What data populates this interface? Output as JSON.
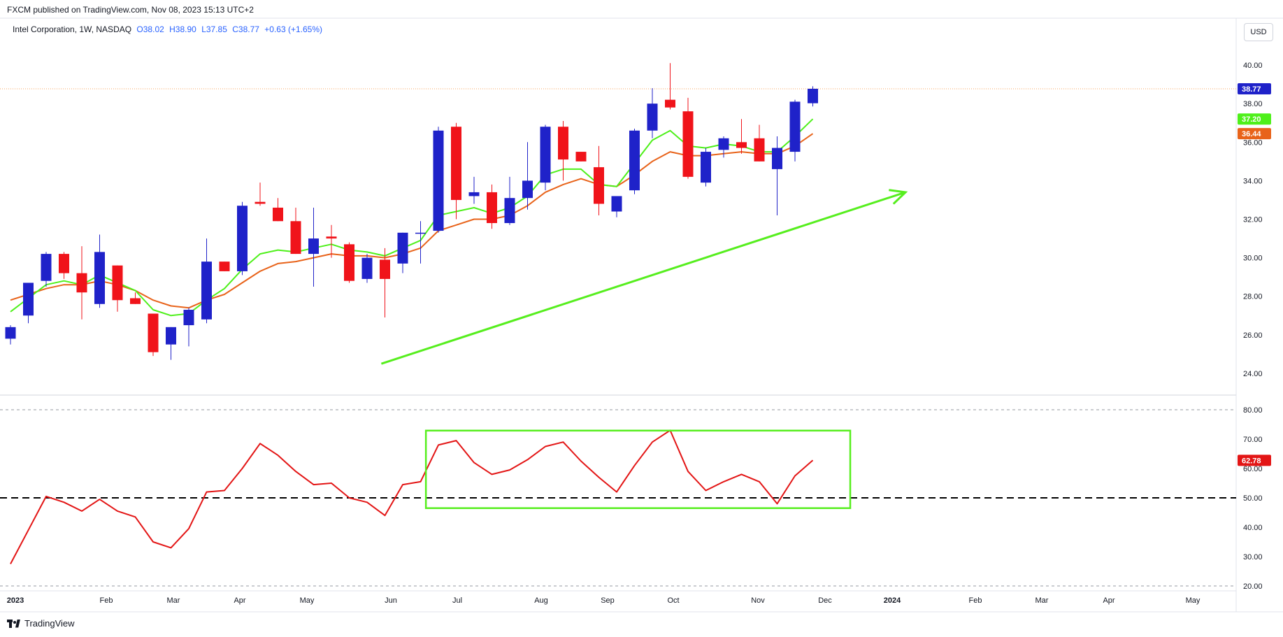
{
  "header": {
    "published": "FXCM published on TradingView.com, Nov 08, 2023 15:13 UTC+2"
  },
  "legend": {
    "symbol": "Intel Corporation, 1W, NASDAQ",
    "open": "O38.02",
    "high": "H38.90",
    "low": "L37.85",
    "close": "C38.77",
    "change": "+0.63 (+1.65%)"
  },
  "currency_button": "USD",
  "footer": {
    "brand": "TradingView"
  },
  "colors": {
    "up": "#1f22c9",
    "down": "#f0131a",
    "ema_fast": "#4ef01a",
    "ema_slow": "#e8631a",
    "rsi": "#e31515",
    "annotation": "#56ee1e"
  },
  "chart_data": [
    {
      "type": "candlestick",
      "title": "",
      "ylim": [
        23.2,
        41.2
      ],
      "y_ticks": [
        "24.00",
        "26.00",
        "28.00",
        "30.00",
        "32.00",
        "34.00",
        "36.00",
        "38.00",
        "40.00"
      ],
      "x_ticks": [
        "2023",
        "Feb",
        "Mar",
        "Apr",
        "May",
        "Jun",
        "Jul",
        "Aug",
        "Sep",
        "Oct",
        "Nov",
        "Dec",
        "2024",
        "Feb",
        "Mar",
        "Apr",
        "May"
      ],
      "price_labels": [
        {
          "text": "38.77",
          "value": 38.77,
          "color": "#1f22c9"
        },
        {
          "text": "37.20",
          "value": 37.2,
          "color": "#4ef01a"
        },
        {
          "text": "36.44",
          "value": 36.44,
          "color": "#e8631a"
        }
      ],
      "last_price": 38.77,
      "ohlc": [
        [
          25.8,
          26.5,
          25.5,
          26.4
        ],
        [
          27.0,
          28.7,
          26.6,
          28.7
        ],
        [
          28.8,
          30.3,
          28.5,
          30.2
        ],
        [
          30.2,
          30.3,
          28.9,
          29.2
        ],
        [
          29.2,
          30.6,
          26.8,
          28.2
        ],
        [
          27.6,
          31.2,
          27.4,
          30.3
        ],
        [
          29.6,
          29.6,
          27.2,
          27.8
        ],
        [
          27.9,
          28.2,
          27.6,
          27.6
        ],
        [
          27.1,
          27.1,
          24.9,
          25.1
        ],
        [
          25.5,
          26.4,
          24.7,
          26.4
        ],
        [
          26.5,
          27.4,
          25.4,
          27.3
        ],
        [
          26.8,
          31.0,
          26.6,
          29.8
        ],
        [
          29.8,
          29.8,
          29.3,
          29.3
        ],
        [
          29.3,
          32.9,
          29.1,
          32.7
        ],
        [
          32.9,
          33.9,
          32.7,
          32.8
        ],
        [
          32.6,
          33.1,
          31.9,
          31.9
        ],
        [
          31.9,
          32.6,
          30.2,
          30.2
        ],
        [
          30.2,
          32.6,
          28.5,
          31.0
        ],
        [
          31.1,
          31.7,
          30.0,
          31.0
        ],
        [
          30.7,
          30.8,
          28.7,
          28.8
        ],
        [
          28.9,
          30.2,
          28.7,
          30.0
        ],
        [
          29.9,
          30.5,
          26.9,
          28.9
        ],
        [
          29.7,
          31.3,
          29.2,
          31.3
        ],
        [
          31.3,
          31.9,
          29.7,
          31.3
        ],
        [
          31.4,
          36.8,
          31.3,
          36.6
        ],
        [
          36.8,
          37.0,
          32.0,
          33.0
        ],
        [
          33.2,
          34.2,
          32.8,
          33.4
        ],
        [
          33.4,
          33.8,
          31.5,
          31.8
        ],
        [
          31.8,
          34.2,
          31.7,
          33.1
        ],
        [
          33.1,
          36.0,
          32.5,
          34.0
        ],
        [
          33.9,
          36.9,
          33.5,
          36.8
        ],
        [
          36.8,
          37.1,
          34.0,
          35.1
        ],
        [
          35.5,
          35.5,
          35.0,
          35.0
        ],
        [
          34.7,
          35.8,
          32.2,
          32.8
        ],
        [
          32.4,
          33.2,
          32.1,
          33.2
        ],
        [
          33.5,
          36.7,
          33.3,
          36.6
        ],
        [
          36.6,
          38.8,
          36.2,
          38.0
        ],
        [
          38.2,
          40.1,
          37.7,
          37.8
        ],
        [
          37.6,
          38.3,
          34.1,
          34.2
        ],
        [
          33.9,
          35.7,
          33.7,
          35.5
        ],
        [
          35.6,
          36.3,
          35.2,
          36.2
        ],
        [
          36.0,
          37.2,
          35.4,
          35.7
        ],
        [
          36.2,
          36.9,
          35.0,
          35.0
        ],
        [
          34.6,
          36.3,
          32.2,
          35.7
        ],
        [
          35.5,
          38.2,
          35.0,
          38.1
        ],
        [
          38.02,
          38.9,
          37.85,
          38.77
        ]
      ],
      "ema_fast": [
        27.2,
        27.9,
        28.6,
        28.8,
        28.6,
        29.1,
        28.7,
        28.3,
        27.3,
        27.0,
        27.1,
        27.8,
        28.4,
        29.4,
        30.2,
        30.4,
        30.3,
        30.5,
        30.7,
        30.4,
        30.3,
        30.1,
        30.5,
        30.9,
        32.2,
        32.4,
        32.6,
        32.3,
        32.6,
        33.2,
        34.3,
        34.6,
        34.6,
        33.8,
        33.7,
        34.9,
        36.1,
        36.6,
        35.8,
        35.7,
        35.9,
        35.8,
        35.5,
        35.5,
        36.3,
        37.2
      ],
      "ema_slow": [
        27.8,
        28.1,
        28.4,
        28.6,
        28.6,
        28.8,
        28.6,
        28.3,
        27.8,
        27.5,
        27.4,
        27.8,
        28.1,
        28.7,
        29.3,
        29.7,
        29.8,
        30.0,
        30.2,
        30.1,
        30.1,
        30.0,
        30.2,
        30.5,
        31.4,
        31.7,
        32.0,
        32.0,
        32.2,
        32.7,
        33.4,
        33.8,
        34.1,
        33.8,
        33.7,
        34.3,
        35.0,
        35.5,
        35.3,
        35.3,
        35.4,
        35.5,
        35.4,
        35.4,
        35.8,
        36.44
      ],
      "trend_arrow": {
        "from": {
          "index": 20.8,
          "value": 24.5
        },
        "to": {
          "index": 50.2,
          "value": 33.4
        }
      }
    },
    {
      "type": "line",
      "title": "",
      "ylim": [
        20,
        80
      ],
      "y_ticks": [
        "20.00",
        "30.00",
        "40.00",
        "50.00",
        "60.00",
        "70.00",
        "80.00"
      ],
      "reference_lines": [
        20,
        50,
        80
      ],
      "last_label": {
        "text": "62.78",
        "value": 62.78
      },
      "values": [
        27.5,
        39,
        50.5,
        48.5,
        45.5,
        49.5,
        45.5,
        43.5,
        35,
        33,
        39.5,
        52,
        52.5,
        60,
        68.5,
        64.5,
        59,
        54.5,
        55,
        50,
        48.5,
        44,
        54.5,
        55.5,
        68,
        69.5,
        62,
        58,
        59.5,
        63,
        67.5,
        69,
        62.5,
        57,
        52,
        61,
        69,
        73,
        59,
        52.5,
        55.5,
        58,
        55.5,
        48,
        57.5,
        62.78
      ],
      "highlight_box": {
        "from_index": 23.3,
        "to_index": 47.1,
        "top": 72.9,
        "bottom": 46.5
      }
    }
  ]
}
